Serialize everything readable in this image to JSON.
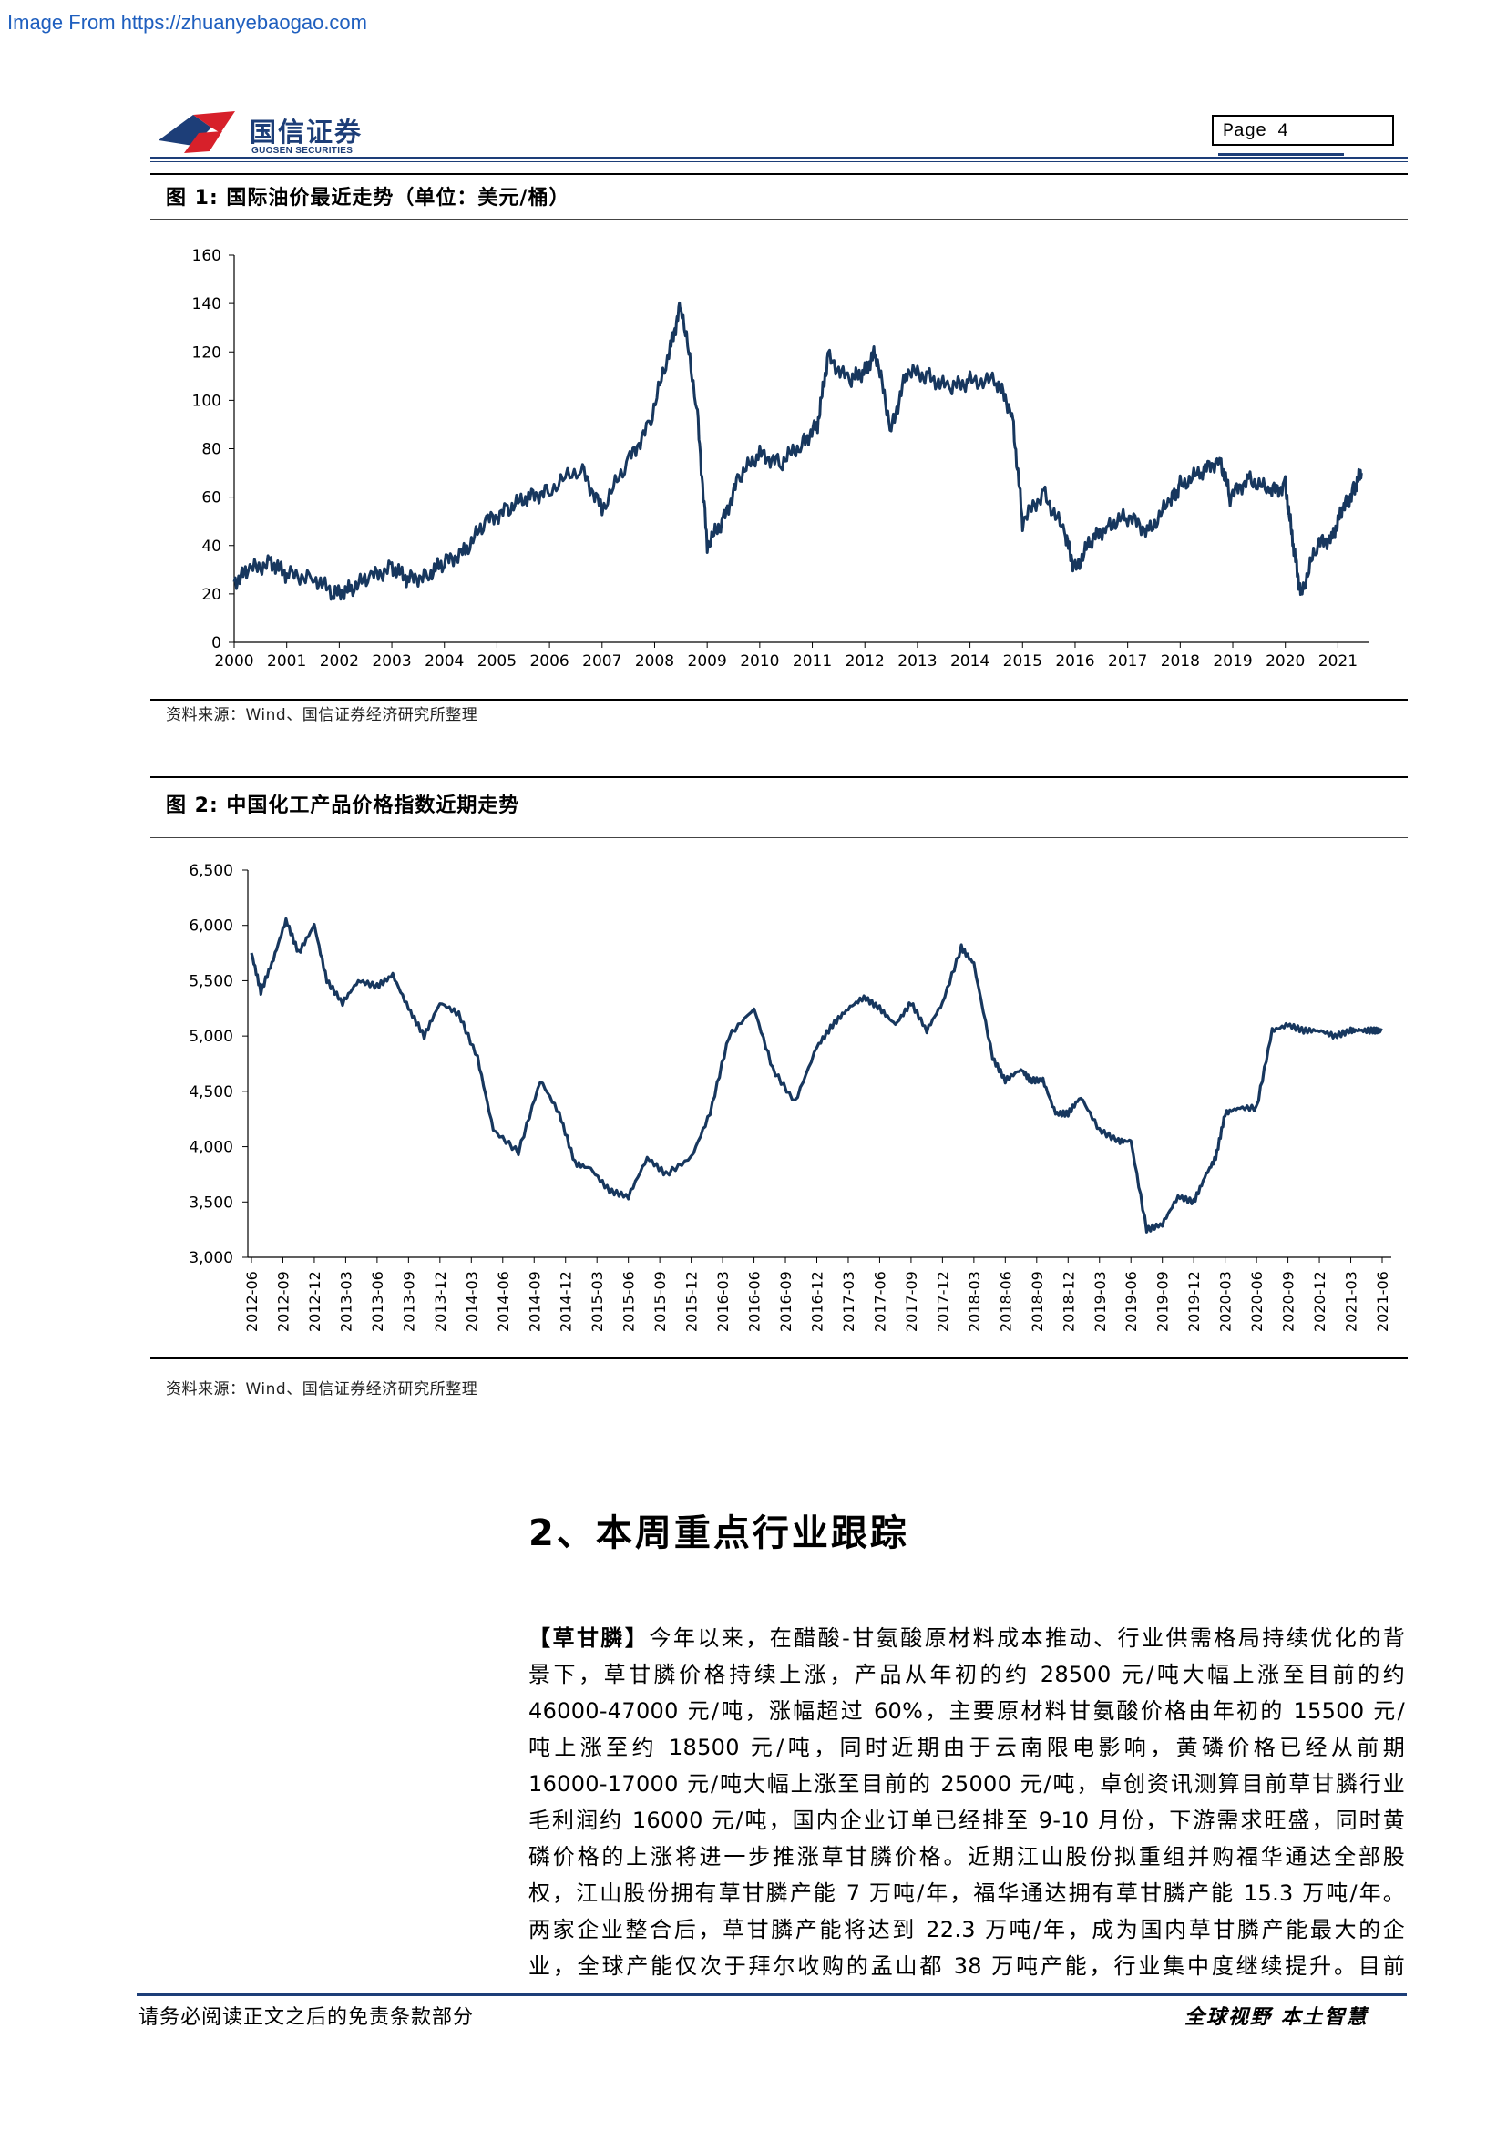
{
  "watermark": "Image From https://zhuanyebaogao.com",
  "header": {
    "logo_cn": "国信证券",
    "logo_en": "GUOSEN SECURITIES",
    "page_label": "Page  4"
  },
  "figure1": {
    "title": "图  1:  国际油价最近走势（单位：美元/桶）",
    "source": "资料来源：Wind、国信证券经济研究所整理"
  },
  "figure2": {
    "title": "图  2:  中国化工产品价格指数近期走势",
    "source": "资料来源：Wind、国信证券经济研究所整理"
  },
  "chart_data": [
    {
      "type": "line",
      "title": "国际油价最近走势（单位：美元/桶）",
      "xlabel": "",
      "ylabel": "",
      "ylim": [
        0,
        160
      ],
      "yticks": [
        "0",
        "20",
        "40",
        "60",
        "80",
        "100",
        "120",
        "140",
        "160"
      ],
      "xticks": [
        "2000",
        "2001",
        "2002",
        "2003",
        "2004",
        "2005",
        "2006",
        "2007",
        "2008",
        "2009",
        "2010",
        "2011",
        "2012",
        "2013",
        "2014",
        "2015",
        "2016",
        "2017",
        "2018",
        "2019",
        "2020",
        "2021"
      ],
      "line_color": "#17375e",
      "grid": false,
      "series": [
        {
          "x": [
            2000.0,
            2000.3,
            2000.7,
            2001.0,
            2001.5,
            2001.9,
            2002.2,
            2002.6,
            2003.0,
            2003.3,
            2003.7,
            2004.0,
            2004.4,
            2004.8,
            2005.2,
            2005.6,
            2006.0,
            2006.6,
            2007.0,
            2007.5,
            2007.9,
            2008.3,
            2008.5,
            2008.8,
            2009.0,
            2009.3,
            2009.6,
            2010.0,
            2010.4,
            2010.8,
            2011.1,
            2011.3,
            2011.7,
            2012.0,
            2012.2,
            2012.5,
            2012.8,
            2013.2,
            2013.6,
            2014.0,
            2014.5,
            2014.8,
            2015.0,
            2015.4,
            2015.8,
            2016.0,
            2016.3,
            2016.6,
            2017.0,
            2017.4,
            2017.8,
            2018.0,
            2018.4,
            2018.75,
            2018.95,
            2019.3,
            2019.7,
            2020.0,
            2020.15,
            2020.3,
            2020.6,
            2020.9,
            2021.1,
            2021.3,
            2021.45
          ],
          "values": [
            25,
            30,
            33,
            28,
            27,
            20,
            22,
            27,
            31,
            26,
            28,
            33,
            38,
            50,
            55,
            60,
            63,
            72,
            55,
            75,
            90,
            122,
            140,
            98,
            40,
            50,
            68,
            78,
            74,
            82,
            90,
            118,
            108,
            112,
            120,
            88,
            112,
            110,
            105,
            108,
            108,
            95,
            50,
            62,
            45,
            30,
            42,
            48,
            52,
            46,
            58,
            65,
            70,
            76,
            60,
            68,
            62,
            65,
            40,
            20,
            40,
            44,
            55,
            63,
            70
          ]
        }
      ]
    },
    {
      "type": "line",
      "title": "中国化工产品价格指数近期走势",
      "xlabel": "",
      "ylabel": "",
      "ylim": [
        3000,
        6500
      ],
      "yticks": [
        "3,000",
        "3,500",
        "4,000",
        "4,500",
        "5,000",
        "5,500",
        "6,000",
        "6,500"
      ],
      "xticks": [
        "2012-06",
        "2012-09",
        "2012-12",
        "2013-03",
        "2013-06",
        "2013-09",
        "2013-12",
        "2014-03",
        "2014-06",
        "2014-09",
        "2014-12",
        "2015-03",
        "2015-06",
        "2015-09",
        "2015-12",
        "2016-03",
        "2016-06",
        "2016-09",
        "2016-12",
        "2017-03",
        "2017-06",
        "2017-09",
        "2017-12",
        "2018-03",
        "2018-06",
        "2018-09",
        "2018-12",
        "2019-03",
        "2019-06",
        "2019-09",
        "2019-12",
        "2020-03",
        "2020-06",
        "2020-09",
        "2020-12",
        "2021-03",
        "2021-06"
      ],
      "line_color": "#17375e",
      "grid": false,
      "series": [
        {
          "x": [
            0,
            0.3,
            0.7,
            1.1,
            1.5,
            2.0,
            2.4,
            2.9,
            3.4,
            4.0,
            4.5,
            5.0,
            5.5,
            6.0,
            6.6,
            7.2,
            7.7,
            8.5,
            9.2,
            9.8,
            10.3,
            10.8,
            11.4,
            12.0,
            12.6,
            13.2,
            14.0,
            14.6,
            15.2,
            16.0,
            16.6,
            17.3,
            18.0,
            18.5,
            19.0,
            19.5,
            20.0,
            20.5,
            21.0,
            21.5,
            22.0,
            22.6,
            23.0,
            23.6,
            24.0,
            24.5,
            24.8,
            25.2,
            25.6,
            26.0,
            26.4,
            27.0,
            27.6,
            28.0,
            28.5,
            29.0,
            29.5,
            30.0,
            30.4,
            30.7,
            31.0,
            31.4,
            32.0,
            32.5,
            33.0,
            33.5,
            34.0,
            34.5,
            35.0,
            35.3,
            35.7,
            36.0
          ],
          "values": [
            5750,
            5400,
            5700,
            6050,
            5750,
            6000,
            5500,
            5300,
            5500,
            5450,
            5550,
            5250,
            5000,
            5300,
            5200,
            4800,
            4150,
            3950,
            4600,
            4300,
            3850,
            3800,
            3600,
            3550,
            3900,
            3750,
            3900,
            4300,
            5000,
            5250,
            4700,
            4400,
            4900,
            5100,
            5250,
            5350,
            5250,
            5100,
            5300,
            5050,
            5300,
            5800,
            5650,
            4800,
            4600,
            4700,
            4600,
            4600,
            4300,
            4300,
            4450,
            4150,
            4050,
            4050,
            3250,
            3300,
            3550,
            3500,
            3750,
            3900,
            4300,
            4350,
            4350,
            5050,
            5100,
            5050,
            5050,
            5000,
            5050,
            5050,
            5050,
            5050
          ]
        }
      ]
    }
  ],
  "section": {
    "title": "2、本周重点行业跟踪"
  },
  "paragraph": {
    "lead": "【草甘膦】",
    "lines": [
      "今年以来，在醋酸-甘氨酸原材料成本推动、行业供需格局持续优化的背",
      "景下，草甘膦价格持续上涨，产品从年初的约 28500 元/吨大幅上涨至目前的约",
      "46000-47000 元/吨，涨幅超过 60%，主要原材料甘氨酸价格由年初的 15500 元/",
      "吨上涨至约 18500 元/吨，同时近期由于云南限电影响，黄磷价格已经从前期",
      "16000-17000 元/吨大幅上涨至目前的 25000 元/吨，卓创资讯测算目前草甘膦行业",
      "毛利润约 16000 元/吨，国内企业订单已经排至 9-10 月份，下游需求旺盛，同时黄",
      "磷价格的上涨将进一步推涨草甘膦价格。近期江山股份拟重组并购福华通达全部股",
      "权，江山股份拥有草甘膦产能 7 万吨/年，福华通达拥有草甘膦产能 15.3 万吨/年。",
      "两家企业整合后，草甘膦产能将达到 22.3 万吨/年，成为国内草甘膦产能最大的企",
      "业，全球产能仅次于拜尔收购的孟山都 38 万吨产能，行业集中度继续提升。目前"
    ]
  },
  "footer": {
    "left": "请务必阅读正文之后的免责条款部分",
    "right": "全球视野  本土智慧"
  }
}
